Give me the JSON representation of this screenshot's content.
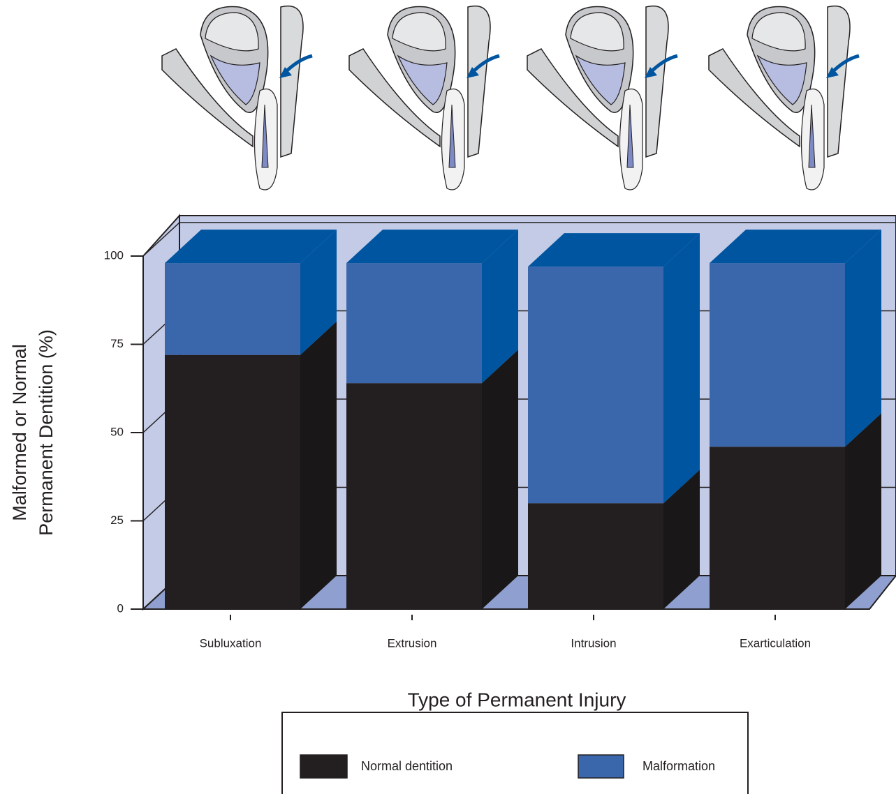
{
  "chart_data": {
    "type": "stacked-bar-3d",
    "categories": [
      "Subluxation",
      "Extrusion",
      "Intrusion",
      "Exarticulation"
    ],
    "series": [
      {
        "name": "Normal dentition",
        "color": "#231f20",
        "values": [
          72,
          64,
          30,
          46
        ]
      },
      {
        "name": "Malformation",
        "color": "#3a67ab",
        "values": [
          26,
          34,
          67,
          52
        ]
      }
    ],
    "ylim": [
      0,
      100
    ],
    "yticks": [
      0,
      25,
      50,
      75,
      100
    ],
    "x_label": "Type of Permanent Injury",
    "y_label": [
      "Malformed or Normal",
      "Permanent Dentition (%)"
    ],
    "grid": true,
    "legend": "bottom"
  }
}
